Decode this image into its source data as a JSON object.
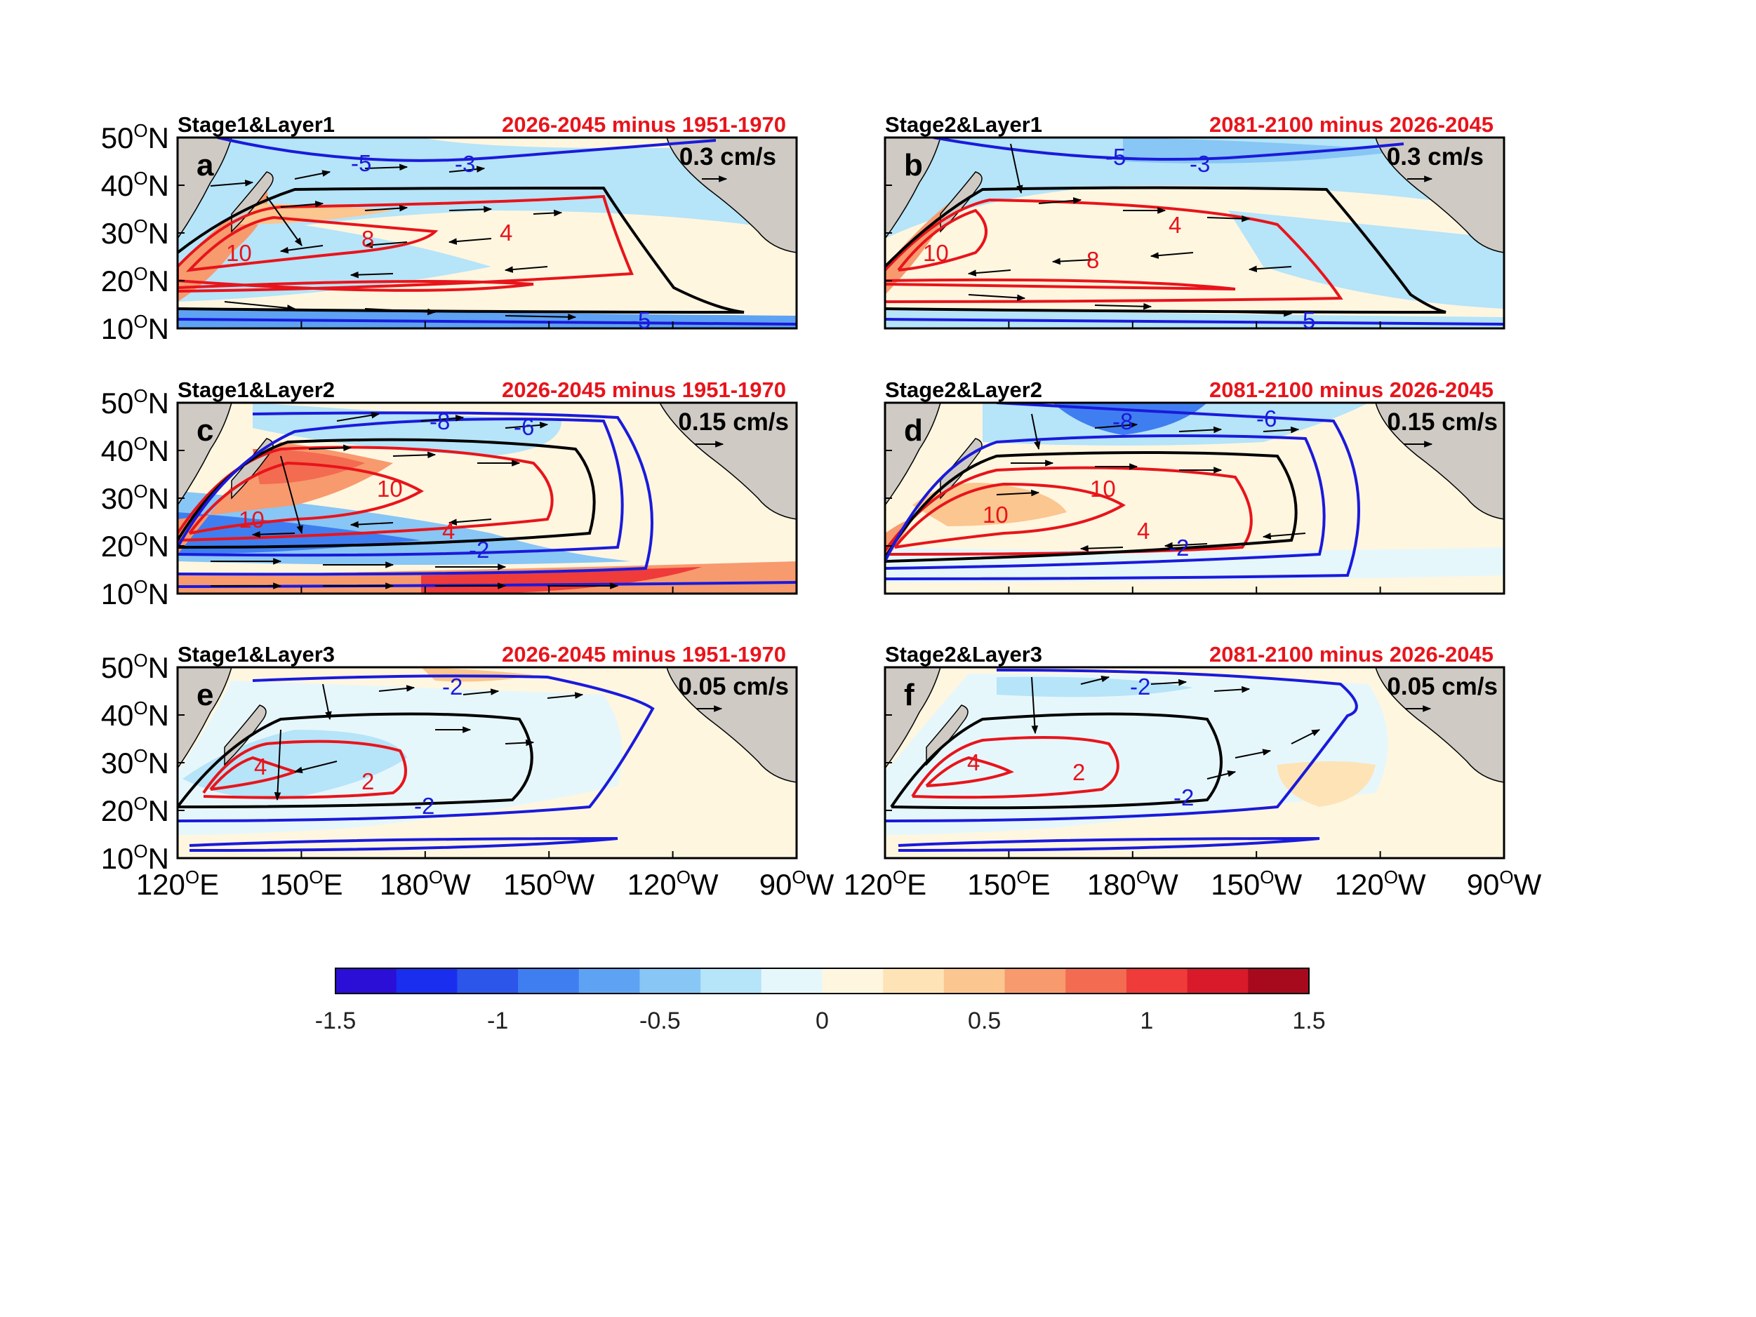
{
  "chart_data": {
    "type": "contour-map",
    "panels": [
      {
        "letter": "a",
        "title": "Stage1&Layer1",
        "period": "2026-2045 minus 1951-1970",
        "ref_vector": "0.3 cm/s",
        "contour_labels": {
          "red": [
            "10",
            "8",
            "4"
          ],
          "blue": [
            "-5",
            "-3",
            "-5"
          ]
        }
      },
      {
        "letter": "b",
        "title": "Stage2&Layer1",
        "period": "2081-2100 minus 2026-2045",
        "ref_vector": "0.3 cm/s",
        "contour_labels": {
          "red": [
            "10",
            "8",
            "4"
          ],
          "blue": [
            "-5",
            "-3",
            "-5"
          ]
        }
      },
      {
        "letter": "c",
        "title": "Stage1&Layer2",
        "period": "2026-2045 minus 1951-1970",
        "ref_vector": "0.15 cm/s",
        "contour_labels": {
          "red": [
            "10",
            "10",
            "4"
          ],
          "blue": [
            "-8",
            "-6",
            "-2"
          ]
        }
      },
      {
        "letter": "d",
        "title": "Stage2&Layer2",
        "period": "2081-2100 minus 2026-2045",
        "ref_vector": "0.15 cm/s",
        "contour_labels": {
          "red": [
            "10",
            "10",
            "4"
          ],
          "blue": [
            "-8",
            "-6",
            "-2"
          ]
        }
      },
      {
        "letter": "e",
        "title": "Stage1&Layer3",
        "period": "2026-2045 minus 1951-1970",
        "ref_vector": "0.05 cm/s",
        "contour_labels": {
          "red": [
            "4",
            "2"
          ],
          "blue": [
            "-2",
            "-2"
          ]
        }
      },
      {
        "letter": "f",
        "title": "Stage2&Layer3",
        "period": "2081-2100 minus 2026-2045",
        "ref_vector": "0.05 cm/s",
        "contour_labels": {
          "red": [
            "4",
            "2"
          ],
          "blue": [
            "-2",
            "-2"
          ]
        }
      }
    ],
    "y_ticks": [
      {
        "deg": "50",
        "sup": "O",
        "hem": "N"
      },
      {
        "deg": "40",
        "sup": "O",
        "hem": "N"
      },
      {
        "deg": "30",
        "sup": "O",
        "hem": "N"
      },
      {
        "deg": "20",
        "sup": "O",
        "hem": "N"
      },
      {
        "deg": "10",
        "sup": "O",
        "hem": "N"
      }
    ],
    "x_ticks": [
      {
        "deg": "120",
        "sup": "O",
        "hem": "E"
      },
      {
        "deg": "150",
        "sup": "O",
        "hem": "E"
      },
      {
        "deg": "180",
        "sup": "O",
        "hem": "W"
      },
      {
        "deg": "150",
        "sup": "O",
        "hem": "W"
      },
      {
        "deg": "120",
        "sup": "O",
        "hem": "W"
      },
      {
        "deg": "90",
        "sup": "O",
        "hem": "W"
      }
    ],
    "xlim_deg_east": [
      120,
      270
    ],
    "ylim_deg_north": [
      10,
      50
    ],
    "colorbar": {
      "range": [
        -1.5,
        1.5
      ],
      "tick_values": [
        -1.5,
        -1,
        -0.5,
        0,
        0.5,
        1,
        1.5
      ],
      "tick_labels": [
        "-1.5",
        "-1",
        "-0.5",
        "0",
        "0.5",
        "1",
        "1.5"
      ],
      "colors": [
        "#2b0fd6",
        "#1a2ef0",
        "#2c55ea",
        "#3f7ef0",
        "#5ea2f3",
        "#88c6f5",
        "#b6e4f8",
        "#e6f7fc",
        "#fff6e0",
        "#fde3b6",
        "#fbc68f",
        "#f79a6e",
        "#f36b51",
        "#ef3b3a",
        "#d81a2a",
        "#a80a1d"
      ]
    },
    "colors": {
      "positive_contour": "#e8141b",
      "negative_contour": "#1a1adb",
      "zero_contour": "#000000",
      "land": "#cfcbc4"
    }
  }
}
